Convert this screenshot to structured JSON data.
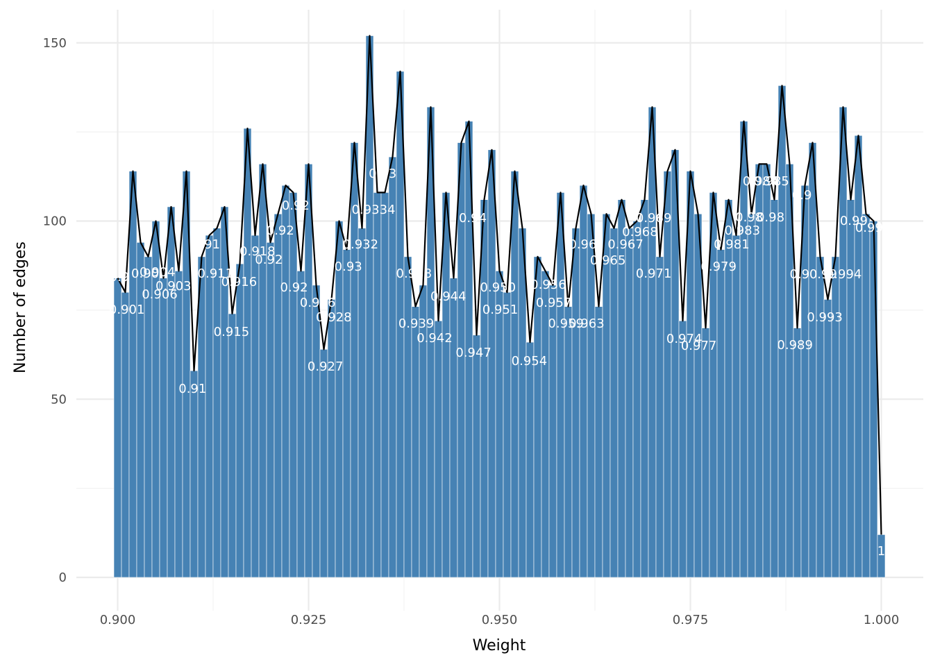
{
  "chart_data": {
    "type": "bar",
    "title": "",
    "xlabel": "Weight",
    "ylabel": "Number of edges",
    "xlim": [
      0.8995,
      1.0005
    ],
    "ylim": [
      -10,
      153
    ],
    "grid": true,
    "legend": "none",
    "x_ticks": [
      0.9,
      0.925,
      0.95,
      0.975,
      1.0
    ],
    "x_tick_labels": [
      "0.900",
      "0.925",
      "0.950",
      "0.975",
      "1.000"
    ],
    "y_ticks": [
      0,
      50,
      100,
      150
    ],
    "y_tick_labels": [
      "0",
      "50",
      "100",
      "150"
    ],
    "bar_color": "#4682b4",
    "line_color": "#000000",
    "label_color": "#ffffff",
    "bin_width": 0.001,
    "x": [
      0.9,
      0.901,
      0.902,
      0.903,
      0.904,
      0.905,
      0.906,
      0.907,
      0.908,
      0.909,
      0.91,
      0.911,
      0.912,
      0.913,
      0.914,
      0.915,
      0.916,
      0.917,
      0.918,
      0.919,
      0.92,
      0.921,
      0.922,
      0.923,
      0.924,
      0.925,
      0.926,
      0.927,
      0.928,
      0.929,
      0.93,
      0.931,
      0.932,
      0.933,
      0.934,
      0.935,
      0.936,
      0.937,
      0.938,
      0.939,
      0.94,
      0.941,
      0.942,
      0.943,
      0.944,
      0.945,
      0.946,
      0.947,
      0.948,
      0.949,
      0.95,
      0.951,
      0.952,
      0.953,
      0.954,
      0.955,
      0.956,
      0.957,
      0.958,
      0.959,
      0.96,
      0.961,
      0.962,
      0.963,
      0.964,
      0.965,
      0.966,
      0.967,
      0.968,
      0.969,
      0.97,
      0.971,
      0.972,
      0.973,
      0.974,
      0.975,
      0.976,
      0.977,
      0.978,
      0.979,
      0.98,
      0.981,
      0.982,
      0.983,
      0.984,
      0.985,
      0.986,
      0.987,
      0.988,
      0.989,
      0.99,
      0.991,
      0.992,
      0.993,
      0.994,
      0.995,
      0.996,
      0.997,
      0.998,
      0.999,
      1.0
    ],
    "values": [
      84,
      80,
      114,
      94,
      90,
      100,
      84,
      104,
      86,
      114,
      58,
      90,
      96,
      98,
      104,
      74,
      88,
      126,
      96,
      116,
      94,
      102,
      110,
      108,
      86,
      116,
      82,
      64,
      78,
      100,
      92,
      122,
      98,
      152,
      108,
      108,
      118,
      142,
      90,
      76,
      82,
      132,
      72,
      108,
      84,
      122,
      128,
      68,
      106,
      120,
      86,
      80,
      114,
      98,
      66,
      90,
      86,
      82,
      108,
      76,
      98,
      110,
      102,
      76,
      102,
      98,
      106,
      98,
      100,
      106,
      132,
      90,
      114,
      120,
      72,
      114,
      102,
      70,
      108,
      92,
      106,
      96,
      128,
      102,
      116,
      116,
      106,
      138,
      116,
      70,
      110,
      122,
      90,
      78,
      90,
      132,
      106,
      124,
      102,
      100,
      12
    ],
    "labels": [
      [
        "0.9",
        0.9002,
        405,
        "middle"
      ],
      [
        "0.901",
        0.9012,
        452,
        "middle"
      ],
      [
        "0.9",
        0.9043,
        305,
        "middle"
      ],
      [
        "0.90",
        0.9036,
        400,
        "middle"
      ],
      [
        "0.904",
        0.9052,
        398,
        "middle"
      ],
      [
        "0.906",
        0.9055,
        430,
        "middle"
      ],
      [
        "0.903",
        0.9073,
        418,
        "middle"
      ],
      [
        "0.91",
        0.9098,
        566,
        "middle"
      ],
      [
        "0.91",
        0.9116,
        358,
        "middle"
      ],
      [
        "0.911",
        0.9128,
        400,
        "middle"
      ],
      [
        "0.916",
        0.9159,
        412,
        "middle"
      ],
      [
        "0.915",
        0.9149,
        484,
        "middle"
      ],
      [
        "0.918",
        0.9183,
        368,
        "middle"
      ],
      [
        "0.92",
        0.9198,
        380,
        "middle"
      ],
      [
        "0.92",
        0.9213,
        338,
        "middle"
      ],
      [
        "0.92",
        0.9231,
        420,
        "middle"
      ],
      [
        "0.92",
        0.9233,
        302,
        "middle"
      ],
      [
        "0.926",
        0.9262,
        442,
        "middle"
      ],
      [
        "0.928",
        0.9283,
        463,
        "middle"
      ],
      [
        "0.927",
        0.9272,
        534,
        "middle"
      ],
      [
        "0.93",
        0.9302,
        390,
        "middle"
      ],
      [
        "0.932",
        0.9318,
        358,
        "middle"
      ],
      [
        "0.9334",
        0.9335,
        308,
        "middle"
      ],
      [
        "0.93",
        0.9347,
        256,
        "middle"
      ],
      [
        "0.938",
        0.9388,
        400,
        "middle"
      ],
      [
        "0.939",
        0.9391,
        472,
        "middle"
      ],
      [
        "0.942",
        0.9415,
        493,
        "middle"
      ],
      [
        "0.944",
        0.9433,
        433,
        "middle"
      ],
      [
        "0.94",
        0.9465,
        320,
        "middle"
      ],
      [
        "0.947",
        0.9466,
        514,
        "middle"
      ],
      [
        "0.950",
        0.9498,
        420,
        "middle"
      ],
      [
        "0.951",
        0.9501,
        452,
        "middle"
      ],
      [
        "0.954",
        0.9539,
        526,
        "middle"
      ],
      [
        "0.956",
        0.9564,
        416,
        "middle"
      ],
      [
        "0.957",
        0.9571,
        442,
        "middle"
      ],
      [
        "0.959",
        0.9587,
        472,
        "middle"
      ],
      [
        "0.963",
        0.9614,
        472,
        "middle"
      ],
      [
        "0.96",
        0.9609,
        358,
        "middle"
      ],
      [
        "0.965",
        0.9642,
        381,
        "middle"
      ],
      [
        "0.967",
        0.9665,
        358,
        "middle"
      ],
      [
        "0.968",
        0.9684,
        340,
        "middle"
      ],
      [
        "0.969",
        0.9702,
        320,
        "middle"
      ],
      [
        "0.971",
        0.9702,
        400,
        "middle"
      ],
      [
        "0.974",
        0.9742,
        494,
        "middle"
      ],
      [
        "0.977",
        0.9761,
        504,
        "middle"
      ],
      [
        "0.979",
        0.9787,
        390,
        "middle"
      ],
      [
        "0.981",
        0.9804,
        358,
        "middle"
      ],
      [
        "0.983",
        0.9818,
        338,
        "middle"
      ],
      [
        "0.98",
        0.9827,
        319,
        "middle"
      ],
      [
        "0.98",
        0.9855,
        319,
        "middle"
      ],
      [
        "0.984",
        0.9842,
        267,
        "middle"
      ],
      [
        "0.985",
        0.9856,
        267,
        "middle"
      ],
      [
        "0.989",
        0.9887,
        503,
        "middle"
      ],
      [
        "0.993",
        0.9926,
        463,
        "middle"
      ],
      [
        "0.9",
        0.9893,
        401,
        "middle"
      ],
      [
        "0.9",
        0.9896,
        287,
        "middle"
      ],
      [
        "0.99",
        0.9924,
        401,
        "middle"
      ],
      [
        "0.994",
        0.9951,
        401,
        "middle"
      ],
      [
        "0.99",
        0.9964,
        324,
        "middle"
      ],
      [
        "0.99",
        0.9984,
        334,
        "middle"
      ],
      [
        "1",
        1.0,
        800,
        "middle"
      ]
    ]
  }
}
